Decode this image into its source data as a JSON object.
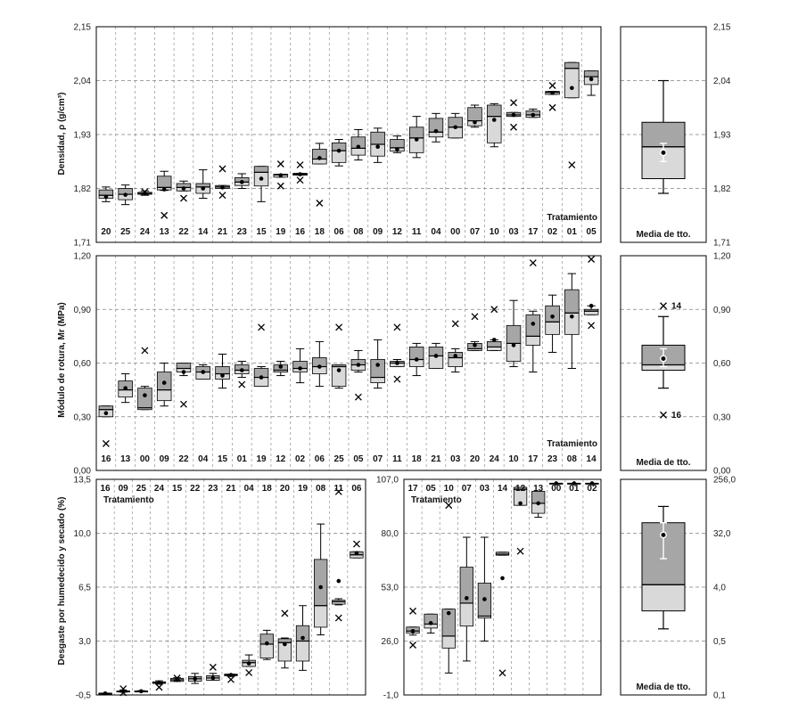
{
  "colors": {
    "lower_box": "#d9d9d9",
    "upper_box": "#a6a6a6",
    "grid": "#808080",
    "marks": "#000000"
  },
  "chart_data": [
    {
      "id": "density",
      "type": "box",
      "ylabel": "Densidad, ρ (g/cm³)",
      "y_ticks": [
        "1,71",
        "1,82",
        "1,93",
        "2,04",
        "2,15"
      ],
      "y_right_ticks": [
        "1,71",
        "1,82",
        "1,93",
        "2,04",
        "2,15"
      ],
      "ylim": [
        1.71,
        2.15
      ],
      "category_title": "Tratamiento",
      "categories": [
        "20",
        "25",
        "24",
        "13",
        "22",
        "14",
        "21",
        "23",
        "15",
        "19",
        "16",
        "18",
        "06",
        "08",
        "09",
        "12",
        "11",
        "04",
        "00",
        "07",
        "10",
        "03",
        "17",
        "02",
        "01",
        "05"
      ],
      "q1": [
        1.8,
        1.797,
        1.808,
        1.817,
        1.815,
        1.81,
        1.82,
        1.826,
        1.825,
        1.843,
        1.847,
        1.87,
        1.873,
        1.888,
        1.886,
        1.896,
        1.893,
        1.925,
        1.923,
        1.948,
        1.913,
        1.967,
        1.965,
        2.012,
        2.005,
        2.032
      ],
      "median": [
        1.806,
        1.808,
        1.81,
        1.822,
        1.822,
        1.823,
        1.823,
        1.833,
        1.853,
        1.848,
        1.849,
        1.88,
        1.897,
        1.902,
        1.91,
        1.903,
        1.923,
        1.935,
        1.945,
        1.958,
        1.967,
        1.97,
        1.97,
        2.016,
        2.065,
        2.048
      ],
      "q3": [
        1.817,
        1.82,
        1.812,
        1.845,
        1.83,
        1.83,
        1.826,
        1.842,
        1.865,
        1.849,
        1.851,
        1.9,
        1.913,
        1.925,
        1.935,
        1.92,
        1.945,
        1.963,
        1.965,
        1.985,
        1.99,
        1.975,
        1.978,
        2.018,
        2.077,
        2.06
      ],
      "lower": [
        1.793,
        1.787,
        1.806,
        1.816,
        1.815,
        1.8,
        1.82,
        1.82,
        1.793,
        1.843,
        1.847,
        1.87,
        1.866,
        1.878,
        1.873,
        1.893,
        1.883,
        1.915,
        1.923,
        1.945,
        1.905,
        1.967,
        1.965,
        2.012,
        2.005,
        2.01
      ],
      "upper": [
        1.823,
        1.827,
        1.815,
        1.855,
        1.835,
        1.858,
        1.826,
        1.85,
        1.865,
        1.849,
        1.851,
        1.912,
        1.92,
        1.94,
        1.943,
        1.927,
        1.967,
        1.973,
        1.973,
        1.99,
        1.993,
        1.975,
        1.982,
        2.018,
        2.077,
        2.06
      ],
      "mean": [
        1.803,
        1.807,
        1.81,
        1.818,
        1.82,
        1.82,
        1.822,
        1.833,
        1.84,
        1.847,
        1.849,
        1.882,
        1.897,
        1.905,
        1.905,
        1.9,
        1.92,
        1.937,
        1.945,
        1.955,
        1.96,
        1.97,
        1.97,
        2.015,
        2.025,
        2.043
      ],
      "outliers": [
        [],
        [],
        [
          1.813
        ],
        [
          1.765
        ],
        [
          1.8
        ],
        [],
        [
          1.86,
          1.806
        ],
        [],
        [],
        [
          1.87,
          1.825
        ],
        [
          1.868,
          1.837
        ],
        [
          1.79
        ],
        [],
        [],
        [],
        [],
        [],
        [],
        [],
        [],
        [],
        [
          1.995,
          1.945
        ],
        [],
        [
          2.03,
          1.985
        ],
        [
          1.868
        ],
        []
      ],
      "summary": {
        "label": "Media de tto.",
        "y_ticks": [
          "1,71",
          "1,82",
          "1,93",
          "2,04",
          "2,15"
        ],
        "lower": 1.81,
        "q1": 1.84,
        "median": 1.905,
        "q3": 1.955,
        "upper": 2.04,
        "mean": 1.893,
        "ci": [
          1.875,
          1.912
        ]
      }
    },
    {
      "id": "rupture",
      "type": "box",
      "ylabel": "Módulo de rotura, Mr (MPa)",
      "y_ticks": [
        "0,00",
        "0,30",
        "0,60",
        "0,90",
        "1,20"
      ],
      "y_right_ticks": [
        "0,00",
        "0,30",
        "0,60",
        "0,90",
        "1,20"
      ],
      "ylim": [
        0,
        1.2
      ],
      "category_title": "Tratamiento",
      "categories": [
        "16",
        "13",
        "00",
        "09",
        "22",
        "04",
        "15",
        "01",
        "19",
        "12",
        "02",
        "06",
        "25",
        "05",
        "07",
        "11",
        "18",
        "21",
        "03",
        "20",
        "24",
        "10",
        "17",
        "23",
        "08",
        "14"
      ],
      "q1": [
        0.3,
        0.41,
        0.34,
        0.39,
        0.55,
        0.51,
        0.51,
        0.54,
        0.47,
        0.55,
        0.55,
        0.54,
        0.47,
        0.56,
        0.49,
        0.58,
        0.58,
        0.57,
        0.58,
        0.67,
        0.67,
        0.61,
        0.7,
        0.76,
        0.76,
        0.87
      ],
      "median": [
        0.34,
        0.45,
        0.35,
        0.45,
        0.57,
        0.55,
        0.54,
        0.56,
        0.52,
        0.56,
        0.57,
        0.58,
        0.58,
        0.59,
        0.52,
        0.6,
        0.62,
        0.64,
        0.63,
        0.68,
        0.69,
        0.71,
        0.75,
        0.83,
        0.88,
        0.89
      ],
      "q3": [
        0.36,
        0.5,
        0.46,
        0.55,
        0.6,
        0.58,
        0.58,
        0.59,
        0.57,
        0.59,
        0.61,
        0.63,
        0.59,
        0.62,
        0.62,
        0.61,
        0.69,
        0.69,
        0.66,
        0.71,
        0.72,
        0.81,
        0.87,
        0.92,
        1.01,
        0.9
      ],
      "lower": [
        0.3,
        0.38,
        0.34,
        0.36,
        0.53,
        0.51,
        0.46,
        0.52,
        0.47,
        0.53,
        0.49,
        0.47,
        0.46,
        0.55,
        0.46,
        0.58,
        0.53,
        0.57,
        0.55,
        0.67,
        0.67,
        0.58,
        0.55,
        0.66,
        0.57,
        0.87
      ],
      "upper": [
        0.36,
        0.54,
        0.47,
        0.6,
        0.6,
        0.59,
        0.65,
        0.61,
        0.58,
        0.61,
        0.68,
        0.72,
        0.59,
        0.67,
        0.73,
        0.62,
        0.71,
        0.71,
        0.68,
        0.72,
        0.73,
        0.95,
        0.89,
        0.98,
        1.1,
        0.92
      ],
      "mean": [
        0.32,
        0.46,
        0.42,
        0.49,
        0.55,
        0.55,
        0.53,
        0.56,
        0.52,
        0.58,
        0.57,
        0.58,
        0.56,
        0.59,
        0.59,
        0.6,
        0.62,
        0.64,
        0.64,
        0.7,
        0.73,
        0.7,
        0.82,
        0.86,
        0.86,
        0.92
      ],
      "outliers": [
        [
          0.15
        ],
        [],
        [
          0.67
        ],
        [],
        [
          0.37
        ],
        [],
        [],
        [
          0.48
        ],
        [
          0.8
        ],
        [],
        [],
        [],
        [
          0.8
        ],
        [
          0.41
        ],
        [],
        [
          0.8,
          0.51
        ],
        [],
        [],
        [
          0.82
        ],
        [
          0.86
        ],
        [
          0.9
        ],
        [],
        [
          1.16
        ],
        [],
        [],
        [
          1.18,
          0.81
        ]
      ],
      "summary": {
        "label": "Media de tto.",
        "y_ticks": [
          "0,00",
          "0,30",
          "0,60",
          "0,90",
          "1,20"
        ],
        "lower": 0.46,
        "q1": 0.56,
        "median": 0.59,
        "q3": 0.7,
        "upper": 0.86,
        "mean": 0.625,
        "ci": [
          0.58,
          0.68
        ],
        "outliers": [
          {
            "value": 0.92,
            "label": "14"
          },
          {
            "value": 0.31,
            "label": "16"
          }
        ]
      }
    },
    {
      "id": "wear",
      "type": "box",
      "ylabel": "Desgaste por humedecido y secado (%)",
      "category_title": "Tratamiento",
      "left": {
        "y_ticks": [
          "-0,5",
          "3,0",
          "6,5",
          "10,0",
          "13,5"
        ],
        "ylim": [
          -0.5,
          13.5
        ],
        "categories": [
          "16",
          "09",
          "25",
          "24",
          "15",
          "22",
          "23",
          "21",
          "04",
          "18",
          "20",
          "19",
          "08",
          "11",
          "06"
        ],
        "q1": [
          -0.42,
          -0.28,
          -0.28,
          0.25,
          0.38,
          0.4,
          0.45,
          0.75,
          1.35,
          1.9,
          1.7,
          1.7,
          3.9,
          5.4,
          8.4
        ],
        "median": [
          -0.4,
          -0.26,
          -0.26,
          0.3,
          0.48,
          0.55,
          0.6,
          0.8,
          1.6,
          2.8,
          2.9,
          3.0,
          5.3,
          5.55,
          8.6
        ],
        "q3": [
          -0.38,
          -0.25,
          -0.24,
          0.35,
          0.58,
          0.7,
          0.75,
          0.85,
          1.75,
          3.45,
          3.15,
          4.0,
          8.3,
          5.65,
          8.8
        ],
        "lower": [
          -0.42,
          -0.32,
          -0.28,
          0.2,
          0.38,
          0.25,
          0.45,
          0.7,
          1.35,
          1.8,
          1.25,
          1.1,
          3.4,
          5.35,
          8.4
        ],
        "upper": [
          -0.38,
          -0.2,
          -0.22,
          0.42,
          0.62,
          0.9,
          0.9,
          0.85,
          2.1,
          3.7,
          3.2,
          5.3,
          10.6,
          5.75,
          8.8
        ],
        "mean": [
          -0.4,
          -0.27,
          -0.26,
          0.3,
          0.48,
          0.55,
          0.6,
          0.8,
          1.55,
          2.85,
          2.8,
          3.2,
          6.5,
          6.9,
          8.7
        ],
        "outliers": [
          [],
          [
            -0.35,
            -0.1
          ],
          [],
          [
            0.0
          ],
          [
            0.6
          ],
          [],
          [
            1.3
          ],
          [
            0.5
          ],
          [
            0.95
          ],
          [],
          [
            4.8
          ],
          [],
          [],
          [
            12.7,
            4.5
          ],
          [
            9.3
          ]
        ]
      },
      "right": {
        "y_ticks": [
          "-1,0",
          "26,0",
          "53,0",
          "80,0",
          "107,0"
        ],
        "ylim": [
          -1,
          107
        ],
        "categories": [
          "17",
          "05",
          "10",
          "07",
          "03",
          "14",
          "12",
          "13",
          "00",
          "01",
          "02"
        ],
        "q1": [
          30.0,
          32.5,
          22.5,
          33.5,
          37.5,
          69.0,
          94.0,
          90.0,
          105.0,
          105.0,
          105.0
        ],
        "median": [
          31.0,
          34.5,
          28.5,
          45.0,
          38.5,
          69.5,
          102.0,
          95.0,
          105.0,
          105.0,
          105.0
        ],
        "q3": [
          33.0,
          39.5,
          42.0,
          63.0,
          55.0,
          70.5,
          103.0,
          101.0,
          105.0,
          105.0,
          105.0
        ],
        "lower": [
          29.0,
          30.0,
          10.0,
          16.0,
          26.0,
          69.0,
          94.0,
          88.0,
          105.0,
          105.0,
          105.0
        ],
        "upper": [
          33.0,
          39.5,
          42.0,
          78.0,
          78.0,
          70.5,
          103.0,
          101.0,
          105.0,
          105.0,
          105.0
        ],
        "mean": [
          31.0,
          35.0,
          40.0,
          47.5,
          47.0,
          57.5,
          95.0,
          95.0,
          105.0,
          105.0,
          105.0
        ],
        "outliers": [
          [
            41.0,
            24.0
          ],
          [],
          [
            94.0
          ],
          [],
          [],
          [
            10.0
          ],
          [
            71.0
          ],
          [],
          [],
          [],
          []
        ]
      },
      "summary": {
        "label": "Media de tto.",
        "y_ticks": [
          "0,1",
          "0,5",
          "4,0",
          "32,0",
          "256,0"
        ],
        "scale": "log2",
        "lower": 0.8,
        "q1": 1.6,
        "median": 4.4,
        "q3": 48.0,
        "upper": 90.0,
        "mean": 30.0,
        "ci": [
          12.0,
          48.0
        ]
      }
    }
  ]
}
